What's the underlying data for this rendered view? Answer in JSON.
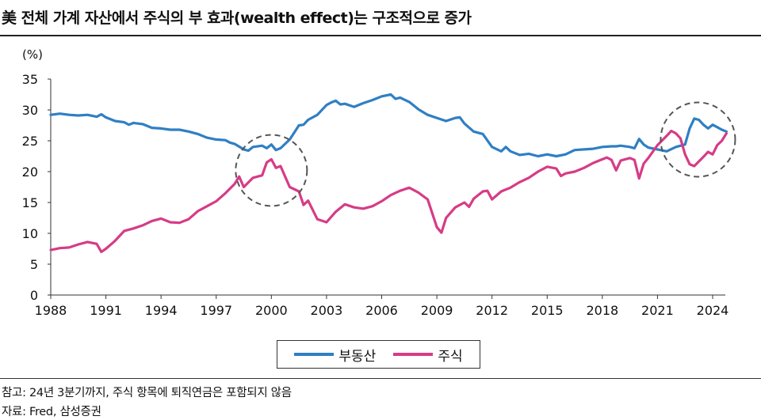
{
  "title": "美 전체 가계 자산에서 주식의 부 효과(wealth effect)는 구조적으로 증가",
  "unit_label": "(%)",
  "legend": [
    {
      "label": "부동산",
      "color": "#2f7fc4"
    },
    {
      "label": "주식",
      "color": "#d63c86"
    }
  ],
  "notes": {
    "note1": "참고: 24년 3분기까지, 주식 항목에 퇴직연금은 포함되지 않음",
    "source": "자료: Fred, 삼성증권"
  },
  "chart_data": {
    "type": "line",
    "title": "美 전체 가계 자산에서 주식의 부 효과(wealth effect)는 구조적으로 증가",
    "ylabel": "(%)",
    "xlim": [
      1988,
      2024.75
    ],
    "ylim": [
      0,
      35
    ],
    "yticks": [
      0,
      5,
      10,
      15,
      20,
      25,
      30,
      35
    ],
    "xticks": [
      1988,
      1991,
      1994,
      1997,
      2000,
      2003,
      2006,
      2009,
      2012,
      2015,
      2018,
      2021,
      2024
    ],
    "grid": false,
    "legend_position": "bottom-center",
    "series": [
      {
        "name": "부동산",
        "color": "#2f7fc4",
        "points": [
          [
            1988.0,
            29.2
          ],
          [
            1988.5,
            29.4
          ],
          [
            1989.0,
            29.2
          ],
          [
            1989.5,
            29.1
          ],
          [
            1990.0,
            29.2
          ],
          [
            1990.5,
            28.9
          ],
          [
            1990.75,
            29.3
          ],
          [
            1991.0,
            28.8
          ],
          [
            1991.5,
            28.2
          ],
          [
            1992.0,
            28.0
          ],
          [
            1992.25,
            27.6
          ],
          [
            1992.5,
            27.9
          ],
          [
            1993.0,
            27.7
          ],
          [
            1993.5,
            27.1
          ],
          [
            1994.0,
            27.0
          ],
          [
            1994.5,
            26.8
          ],
          [
            1995.0,
            26.8
          ],
          [
            1995.5,
            26.5
          ],
          [
            1996.0,
            26.1
          ],
          [
            1996.5,
            25.5
          ],
          [
            1997.0,
            25.2
          ],
          [
            1997.5,
            25.1
          ],
          [
            1997.75,
            24.7
          ],
          [
            1998.0,
            24.5
          ],
          [
            1998.5,
            23.6
          ],
          [
            1998.75,
            23.4
          ],
          [
            1999.0,
            24.0
          ],
          [
            1999.5,
            24.2
          ],
          [
            1999.75,
            23.8
          ],
          [
            2000.0,
            24.4
          ],
          [
            2000.25,
            23.5
          ],
          [
            2000.5,
            23.8
          ],
          [
            2001.0,
            25.2
          ],
          [
            2001.5,
            27.5
          ],
          [
            2001.75,
            27.6
          ],
          [
            2002.0,
            28.4
          ],
          [
            2002.5,
            29.2
          ],
          [
            2003.0,
            30.8
          ],
          [
            2003.25,
            31.2
          ],
          [
            2003.5,
            31.5
          ],
          [
            2003.75,
            30.9
          ],
          [
            2004.0,
            31.0
          ],
          [
            2004.5,
            30.5
          ],
          [
            2005.0,
            31.1
          ],
          [
            2005.5,
            31.6
          ],
          [
            2006.0,
            32.2
          ],
          [
            2006.5,
            32.5
          ],
          [
            2006.75,
            31.8
          ],
          [
            2007.0,
            32.0
          ],
          [
            2007.5,
            31.3
          ],
          [
            2008.0,
            30.1
          ],
          [
            2008.5,
            29.2
          ],
          [
            2009.0,
            28.7
          ],
          [
            2009.5,
            28.2
          ],
          [
            2010.0,
            28.7
          ],
          [
            2010.25,
            28.8
          ],
          [
            2010.5,
            27.8
          ],
          [
            2011.0,
            26.5
          ],
          [
            2011.5,
            26.1
          ],
          [
            2012.0,
            24.0
          ],
          [
            2012.5,
            23.3
          ],
          [
            2012.75,
            24.0
          ],
          [
            2013.0,
            23.3
          ],
          [
            2013.5,
            22.7
          ],
          [
            2014.0,
            22.9
          ],
          [
            2014.5,
            22.5
          ],
          [
            2015.0,
            22.8
          ],
          [
            2015.5,
            22.5
          ],
          [
            2016.0,
            22.8
          ],
          [
            2016.5,
            23.5
          ],
          [
            2017.0,
            23.6
          ],
          [
            2017.5,
            23.7
          ],
          [
            2018.0,
            24.0
          ],
          [
            2018.5,
            24.1
          ],
          [
            2018.75,
            24.1
          ],
          [
            2019.0,
            24.2
          ],
          [
            2019.5,
            24.0
          ],
          [
            2019.75,
            23.8
          ],
          [
            2020.0,
            25.3
          ],
          [
            2020.25,
            24.4
          ],
          [
            2020.5,
            23.9
          ],
          [
            2021.0,
            23.6
          ],
          [
            2021.5,
            23.3
          ],
          [
            2022.0,
            24.0
          ],
          [
            2022.5,
            24.4
          ],
          [
            2022.75,
            27.0
          ],
          [
            2023.0,
            28.6
          ],
          [
            2023.25,
            28.4
          ],
          [
            2023.5,
            27.6
          ],
          [
            2023.75,
            27.0
          ],
          [
            2024.0,
            27.6
          ],
          [
            2024.25,
            27.2
          ],
          [
            2024.5,
            26.8
          ],
          [
            2024.75,
            26.5
          ]
        ]
      },
      {
        "name": "주식",
        "color": "#d63c86",
        "points": [
          [
            1988.0,
            7.3
          ],
          [
            1988.5,
            7.6
          ],
          [
            1989.0,
            7.7
          ],
          [
            1989.5,
            8.2
          ],
          [
            1990.0,
            8.6
          ],
          [
            1990.5,
            8.3
          ],
          [
            1990.75,
            7.0
          ],
          [
            1991.0,
            7.5
          ],
          [
            1991.5,
            8.8
          ],
          [
            1992.0,
            10.4
          ],
          [
            1992.5,
            10.8
          ],
          [
            1993.0,
            11.3
          ],
          [
            1993.5,
            12.0
          ],
          [
            1994.0,
            12.4
          ],
          [
            1994.5,
            11.8
          ],
          [
            1995.0,
            11.7
          ],
          [
            1995.5,
            12.3
          ],
          [
            1996.0,
            13.6
          ],
          [
            1996.5,
            14.4
          ],
          [
            1997.0,
            15.2
          ],
          [
            1997.5,
            16.5
          ],
          [
            1998.0,
            18.0
          ],
          [
            1998.25,
            19.2
          ],
          [
            1998.5,
            17.5
          ],
          [
            1999.0,
            19.0
          ],
          [
            1999.5,
            19.4
          ],
          [
            1999.75,
            21.5
          ],
          [
            2000.0,
            22.0
          ],
          [
            2000.25,
            20.6
          ],
          [
            2000.5,
            20.9
          ],
          [
            2001.0,
            17.5
          ],
          [
            2001.5,
            16.8
          ],
          [
            2001.75,
            14.6
          ],
          [
            2002.0,
            15.3
          ],
          [
            2002.5,
            12.3
          ],
          [
            2003.0,
            11.8
          ],
          [
            2003.5,
            13.5
          ],
          [
            2004.0,
            14.7
          ],
          [
            2004.5,
            14.2
          ],
          [
            2005.0,
            14.0
          ],
          [
            2005.5,
            14.4
          ],
          [
            2006.0,
            15.2
          ],
          [
            2006.5,
            16.2
          ],
          [
            2007.0,
            16.9
          ],
          [
            2007.5,
            17.4
          ],
          [
            2008.0,
            16.6
          ],
          [
            2008.5,
            15.5
          ],
          [
            2009.0,
            11.0
          ],
          [
            2009.25,
            10.1
          ],
          [
            2009.5,
            12.5
          ],
          [
            2010.0,
            14.2
          ],
          [
            2010.5,
            15.0
          ],
          [
            2010.75,
            14.3
          ],
          [
            2011.0,
            15.6
          ],
          [
            2011.5,
            16.8
          ],
          [
            2011.75,
            16.9
          ],
          [
            2012.0,
            15.5
          ],
          [
            2012.5,
            16.8
          ],
          [
            2013.0,
            17.4
          ],
          [
            2013.5,
            18.3
          ],
          [
            2014.0,
            19.0
          ],
          [
            2014.5,
            20.0
          ],
          [
            2015.0,
            20.8
          ],
          [
            2015.5,
            20.5
          ],
          [
            2015.75,
            19.3
          ],
          [
            2016.0,
            19.7
          ],
          [
            2016.5,
            20.0
          ],
          [
            2017.0,
            20.6
          ],
          [
            2017.5,
            21.4
          ],
          [
            2018.0,
            22.0
          ],
          [
            2018.25,
            22.3
          ],
          [
            2018.5,
            21.9
          ],
          [
            2018.75,
            20.2
          ],
          [
            2019.0,
            21.8
          ],
          [
            2019.5,
            22.2
          ],
          [
            2019.75,
            21.9
          ],
          [
            2020.0,
            18.9
          ],
          [
            2020.25,
            21.3
          ],
          [
            2020.5,
            22.2
          ],
          [
            2021.0,
            24.3
          ],
          [
            2021.5,
            25.8
          ],
          [
            2021.75,
            26.6
          ],
          [
            2022.0,
            26.2
          ],
          [
            2022.25,
            25.4
          ],
          [
            2022.5,
            22.8
          ],
          [
            2022.75,
            21.2
          ],
          [
            2023.0,
            20.9
          ],
          [
            2023.5,
            22.4
          ],
          [
            2023.75,
            23.2
          ],
          [
            2024.0,
            22.8
          ],
          [
            2024.25,
            24.3
          ],
          [
            2024.5,
            25.0
          ],
          [
            2024.75,
            26.2
          ]
        ]
      }
    ]
  }
}
